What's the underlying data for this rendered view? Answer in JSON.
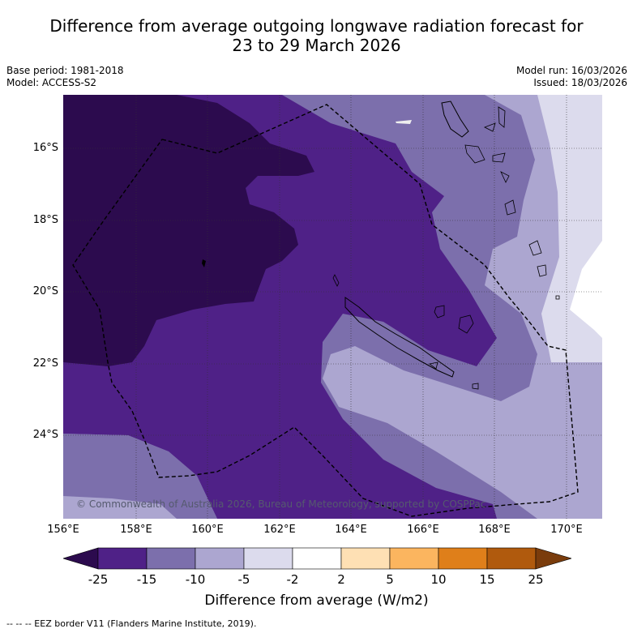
{
  "title_line1": "Difference from average outgoing longwave radiation forecast for",
  "title_line2": "23 to 29 March 2026",
  "base_period": "Base period: 1981-2018",
  "model": "Model: ACCESS-S2",
  "model_run": "Model run: 16/03/2026",
  "issued": "Issued: 18/03/2026",
  "lat_labels": [
    "16°S",
    "18°S",
    "20°S",
    "22°S",
    "24°S"
  ],
  "lon_labels": [
    "156°E",
    "158°E",
    "160°E",
    "162°E",
    "164°E",
    "166°E",
    "168°E",
    "170°E"
  ],
  "copyright": "© Commonwealth of Australia 2026, Bureau of Meteorology, supported by COSPPac",
  "colorbar": {
    "ticks": [
      "-25",
      "-15",
      "-10",
      "-5",
      "-2",
      "2",
      "5",
      "10",
      "15",
      "25"
    ],
    "colors": [
      "#4f2187",
      "#7c6fac",
      "#aca6d0",
      "#dcdbed",
      "#ffffff",
      "#fee0b4",
      "#fbb55f",
      "#df7f1a",
      "#b05a0d"
    ],
    "under_color": "#2c0b4e",
    "over_color": "#7a3c0c",
    "label": "Difference from average (W/m2)"
  },
  "footer": "-- -- -- EEZ border V11 (Flanders Marine Institute, 2019)."
}
